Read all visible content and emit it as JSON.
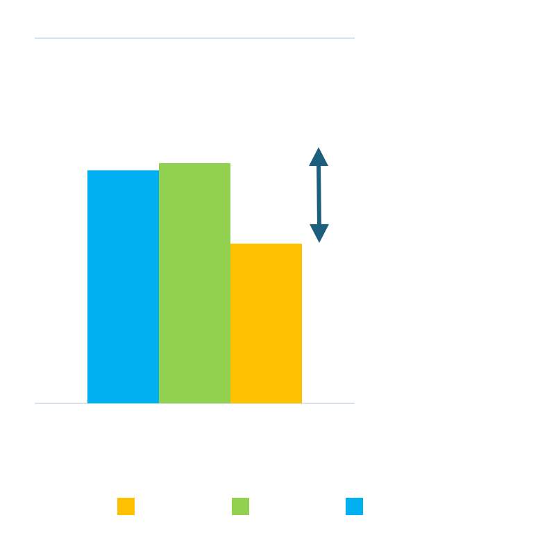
{
  "chart_data": {
    "type": "bar",
    "categories": [
      ""
    ],
    "series": [
      {
        "values": [
          0.97
        ],
        "color": "#00B0F0"
      },
      {
        "values": [
          1.0
        ],
        "color": "#92D050"
      },
      {
        "values": [
          0.665
        ],
        "color": "#FFC000"
      }
    ],
    "ylim": [
      0,
      1.52
    ],
    "grid": true,
    "legend": {
      "placement": "bottom",
      "entries": [
        {
          "color": "#FFC000",
          "label": ""
        },
        {
          "color": "#92D050",
          "label": ""
        },
        {
          "color": "#00B0F0",
          "label": ""
        }
      ]
    },
    "annotation": {
      "type": "double-arrow",
      "from_value": 1.0,
      "to_value": 0.665,
      "color": "#1B5E7E"
    }
  },
  "colors": {
    "gridline": "#D6E4F0",
    "arrow": "#1B5E7E"
  }
}
